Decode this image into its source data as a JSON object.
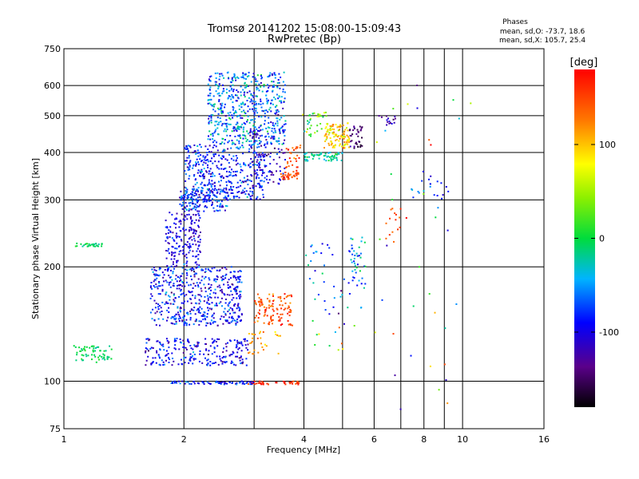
{
  "chart_data": {
    "type": "scatter",
    "title": "Tromsø 20141202 15:08:00-15:09:43",
    "subtitle": "RwPretec (Bp)",
    "xlabel": "Frequency [MHz]",
    "ylabel": "Stationary phase Virtual Height [km]",
    "x_scale": "log",
    "y_scale": "log",
    "xlim": [
      1,
      16
    ],
    "ylim": [
      75,
      750
    ],
    "x_ticks": [
      1,
      2,
      4,
      6,
      8,
      10,
      16
    ],
    "x_gridlines": [
      2,
      3,
      4,
      5,
      6,
      7,
      8,
      9,
      10
    ],
    "y_ticks": [
      75,
      100,
      200,
      300,
      400,
      500,
      600,
      750
    ],
    "y_gridlines": [
      100,
      200,
      300,
      400,
      500,
      600
    ],
    "phase_info": {
      "heading": "Phases",
      "line1": "mean, sd,O: -73.7, 18.6",
      "line2": "mean, sd,X: 105.7, 25.4"
    },
    "colorbar": {
      "label": "[deg]",
      "range": [
        -180,
        180
      ],
      "ticks": [
        100,
        0,
        -100
      ]
    },
    "clusters": [
      {
        "x": [
          1.05,
          1.32
        ],
        "y": [
          112,
          124
        ],
        "n": 60,
        "phase": -5,
        "sd": 10
      },
      {
        "x": [
          1.07,
          1.25
        ],
        "y": [
          226,
          231
        ],
        "n": 30,
        "phase": -5,
        "sd": 10
      },
      {
        "x": [
          1.6,
          2.9
        ],
        "y": [
          110,
          130
        ],
        "n": 230,
        "phase": -95,
        "sd": 22
      },
      {
        "x": [
          1.65,
          2.8
        ],
        "y": [
          140,
          200
        ],
        "n": 520,
        "phase": -90,
        "sd": 25
      },
      {
        "x": [
          1.8,
          2.2
        ],
        "y": [
          200,
          280
        ],
        "n": 180,
        "phase": -100,
        "sd": 20
      },
      {
        "x": [
          1.95,
          2.6
        ],
        "y": [
          280,
          320
        ],
        "n": 160,
        "phase": -80,
        "sd": 25
      },
      {
        "x": [
          2.0,
          3.2
        ],
        "y": [
          300,
          420
        ],
        "n": 420,
        "phase": -85,
        "sd": 25
      },
      {
        "x": [
          2.3,
          3.6
        ],
        "y": [
          420,
          650
        ],
        "n": 550,
        "phase": -60,
        "sd": 30
      },
      {
        "x": [
          2.9,
          3.6
        ],
        "y": [
          330,
          460
        ],
        "n": 90,
        "phase": -110,
        "sd": 20
      },
      {
        "x": [
          3.5,
          3.9
        ],
        "y": [
          340,
          355
        ],
        "n": 35,
        "phase": 150,
        "sd": 12
      },
      {
        "x": [
          3.6,
          3.95
        ],
        "y": [
          355,
          420
        ],
        "n": 30,
        "phase": 150,
        "sd": 20
      },
      {
        "x": [
          3.0,
          3.75
        ],
        "y": [
          140,
          170
        ],
        "n": 110,
        "phase": 145,
        "sd": 20
      },
      {
        "x": [
          2.9,
          3.5
        ],
        "y": [
          118,
          135
        ],
        "n": 30,
        "phase": 115,
        "sd": 15
      },
      {
        "x": [
          2.9,
          3.9
        ],
        "y": [
          98,
          100
        ],
        "n": 40,
        "phase": 160,
        "sd": 12
      },
      {
        "x": [
          1.85,
          3.0
        ],
        "y": [
          98,
          100
        ],
        "n": 70,
        "phase": -85,
        "sd": 20
      },
      {
        "x": [
          4.0,
          5.0
        ],
        "y": [
          380,
          400
        ],
        "n": 60,
        "phase": -20,
        "sd": 15
      },
      {
        "x": [
          4.5,
          5.2
        ],
        "y": [
          410,
          480
        ],
        "n": 110,
        "phase": 95,
        "sd": 25
      },
      {
        "x": [
          5.2,
          5.6
        ],
        "y": [
          410,
          470
        ],
        "n": 35,
        "phase": -140,
        "sd": 15
      },
      {
        "x": [
          3.9,
          4.6
        ],
        "y": [
          440,
          510
        ],
        "n": 35,
        "phase": 30,
        "sd": 30
      },
      {
        "x": [
          4.0,
          5.6
        ],
        "y": [
          150,
          230
        ],
        "n": 45,
        "phase": -60,
        "sd": 40
      },
      {
        "x": [
          5.2,
          5.8
        ],
        "y": [
          175,
          240
        ],
        "n": 35,
        "phase": -40,
        "sd": 30
      },
      {
        "x": [
          4.1,
          5.4
        ],
        "y": [
          120,
          145
        ],
        "n": 12,
        "phase": 10,
        "sd": 60
      },
      {
        "x": [
          6.2,
          6.8
        ],
        "y": [
          470,
          500
        ],
        "n": 14,
        "phase": -120,
        "sd": 15
      },
      {
        "x": [
          7.3,
          9.3
        ],
        "y": [
          300,
          360
        ],
        "n": 20,
        "phase": -70,
        "sd": 30
      },
      {
        "x": [
          6.4,
          7.0
        ],
        "y": [
          230,
          300
        ],
        "n": 14,
        "phase": 150,
        "sd": 15
      },
      {
        "x": [
          6.0,
          10.5
        ],
        "y": [
          80,
          620
        ],
        "n": 40,
        "phase": 0,
        "sd": 110
      }
    ]
  }
}
